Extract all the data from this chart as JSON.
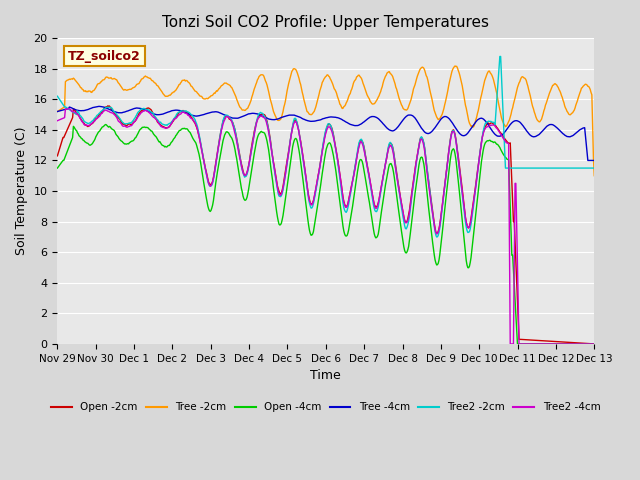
{
  "title": "Tonzi Soil CO2 Profile: Upper Temperatures",
  "ylabel": "Soil Temperature (C)",
  "xlabel": "Time",
  "ylim": [
    0,
    20
  ],
  "annotation": "TZ_soilco2",
  "background_color": "#d8d8d8",
  "plot_bg": "#e8e8e8",
  "x_tick_labels": [
    "Nov 29",
    "Nov 30",
    "Dec 1",
    "Dec 2",
    "Dec 3",
    "Dec 4",
    "Dec 5",
    "Dec 6",
    "Dec 7",
    "Dec 8",
    "Dec 9",
    "Dec 10",
    "Dec 11",
    "Dec 12",
    "Dec 13"
  ],
  "legend_labels": [
    "Open -2cm",
    "Tree -2cm",
    "Open -4cm",
    "Tree -4cm",
    "Tree2 -2cm",
    "Tree2 -4cm"
  ],
  "legend_colors": [
    "#cc0000",
    "#ff9900",
    "#00cc00",
    "#0000cc",
    "#00cccc",
    "#cc00cc"
  ]
}
